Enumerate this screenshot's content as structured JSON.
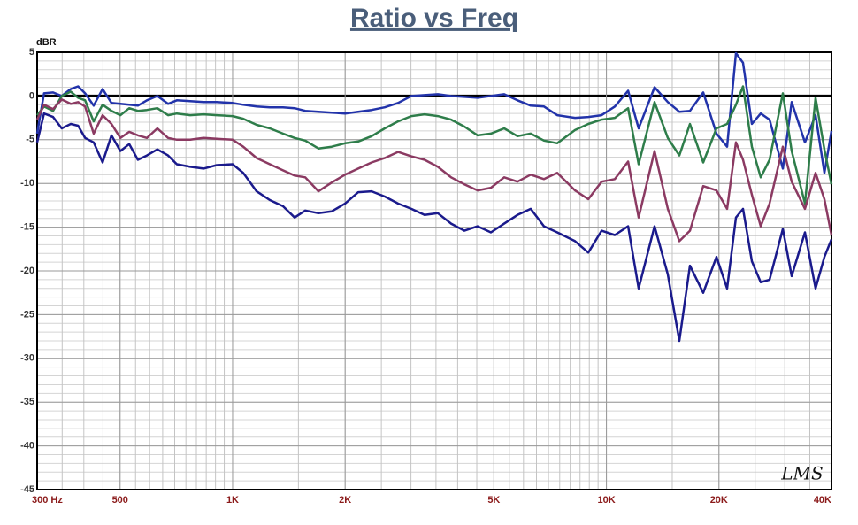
{
  "chart_data": {
    "type": "line",
    "title": "Ratio vs Freq",
    "y_label": "dBR",
    "signature": "LMS",
    "log_x": true,
    "grid": true,
    "xlim": [
      300,
      40000
    ],
    "xticks": [
      {
        "value": 300,
        "label": "300 Hz"
      },
      500,
      {
        "value": 1000,
        "label": "1K"
      },
      {
        "value": 2000,
        "label": "2K"
      },
      {
        "value": 5000,
        "label": "5K"
      },
      {
        "value": 10000,
        "label": "10K"
      },
      {
        "value": 20000,
        "label": "20K"
      },
      {
        "value": 40000,
        "label": "40K"
      }
    ],
    "ylim": [
      -45,
      5
    ],
    "yticks": [
      5,
      0,
      -5,
      -10,
      -15,
      -20,
      -25,
      -30,
      -35,
      -40,
      -45
    ],
    "x": [
      300,
      313,
      331,
      349,
      369,
      386,
      403,
      425,
      449,
      474,
      501,
      529,
      558,
      590,
      629,
      672,
      709,
      770,
      836,
      907,
      1000,
      1068,
      1159,
      1258,
      1364,
      1465,
      1564,
      1697,
      1841,
      1999,
      2168,
      2354,
      2553,
      2771,
      3006,
      3262,
      3540,
      3842,
      4169,
      4525,
      4910,
      5328,
      5782,
      6275,
      6809,
      7389,
      8241,
      8943,
      9704,
      10531,
      11428,
      12195,
      13455,
      14601,
      15672,
      16731,
      18156,
      19702,
      21026,
      22207,
      23195,
      24498,
      25870,
      27318,
      29644,
      31300,
      33960,
      36270,
      38290,
      40000
    ],
    "series": [
      {
        "color": "#2233aa",
        "values": [
          -4.3,
          0.3,
          0.4,
          0,
          0.8,
          1.1,
          0.3,
          -1.1,
          0.8,
          -0.8,
          -0.9,
          -1,
          -1.1,
          -0.5,
          0,
          -0.9,
          -0.5,
          -0.6,
          -0.7,
          -0.7,
          -0.8,
          -1,
          -1.2,
          -1.3,
          -1.3,
          -1.4,
          -1.7,
          -1.8,
          -1.9,
          -2,
          -1.8,
          -1.6,
          -1.3,
          -0.8,
          0,
          0.1,
          0.2,
          0,
          -0.1,
          -0.2,
          0,
          0.2,
          -0.5,
          -1.1,
          -1.2,
          -2.2,
          -2.5,
          -2.4,
          -2.2,
          -1.2,
          0.6,
          -3.7,
          1,
          -0.7,
          -1.8,
          -1.7,
          0.4,
          -4.3,
          -5.8,
          4.9,
          3.8,
          -3.2,
          -2,
          -2.7,
          -8.3,
          -0.7,
          -5.3,
          -2.2,
          -8.8,
          -4
        ]
      },
      {
        "color": "#2e7d4a",
        "values": [
          -2.2,
          -1.2,
          -1.7,
          0,
          0.5,
          -0.2,
          -0.5,
          -2.9,
          -1,
          -1.7,
          -2.2,
          -1.4,
          -1.7,
          -1.6,
          -1.4,
          -2.2,
          -2,
          -2.2,
          -2.1,
          -2.2,
          -2.3,
          -2.6,
          -3.3,
          -3.7,
          -4.3,
          -4.8,
          -5.1,
          -6,
          -5.8,
          -5.4,
          -5.2,
          -4.6,
          -3.7,
          -2.9,
          -2.3,
          -2.1,
          -2.3,
          -2.7,
          -3.5,
          -4.5,
          -4.3,
          -3.7,
          -4.6,
          -4.3,
          -5.1,
          -5.4,
          -3.9,
          -3.2,
          -2.7,
          -2.5,
          -1.4,
          -7.8,
          -0.7,
          -4.8,
          -6.8,
          -3.2,
          -7.6,
          -3.7,
          -3.2,
          -1,
          1.1,
          -5.8,
          -9.3,
          -7.3,
          0.3,
          -6.3,
          -12.3,
          -0.2,
          -6.1,
          -10.1
        ]
      },
      {
        "color": "#8b3a62",
        "values": [
          -2.7,
          -1,
          -1.5,
          -0.4,
          -0.9,
          -0.7,
          -1.2,
          -4.3,
          -2.2,
          -3.2,
          -4.8,
          -4.1,
          -4.5,
          -4.8,
          -3.7,
          -4.8,
          -5,
          -5,
          -4.8,
          -4.9,
          -5,
          -5.8,
          -7.1,
          -7.8,
          -8.5,
          -9.1,
          -9.3,
          -10.9,
          -9.9,
          -9,
          -8.3,
          -7.6,
          -7.1,
          -6.4,
          -6.9,
          -7.3,
          -8.1,
          -9.3,
          -10.1,
          -10.8,
          -10.5,
          -9.3,
          -9.8,
          -9,
          -9.5,
          -8.8,
          -10.8,
          -11.8,
          -9.8,
          -9.5,
          -7.5,
          -13.9,
          -6.3,
          -12.9,
          -16.6,
          -15.4,
          -10.3,
          -10.8,
          -12.9,
          -5.3,
          -7.3,
          -11.3,
          -14.9,
          -12.3,
          -5.8,
          -9.8,
          -12.9,
          -8.8,
          -11.8,
          -15.9
        ]
      },
      {
        "color": "#1a1a8c",
        "values": [
          -5.3,
          -2,
          -2.4,
          -3.7,
          -3.2,
          -3.4,
          -4.8,
          -5.3,
          -7.6,
          -4.5,
          -6.3,
          -5.5,
          -7.3,
          -6.8,
          -6.1,
          -6.8,
          -7.8,
          -8.1,
          -8.3,
          -7.9,
          -7.8,
          -8.8,
          -10.9,
          -11.9,
          -12.6,
          -13.9,
          -13.1,
          -13.4,
          -13.2,
          -12.3,
          -11,
          -10.9,
          -11.5,
          -12.3,
          -12.9,
          -13.6,
          -13.4,
          -14.6,
          -15.4,
          -14.9,
          -15.6,
          -14.6,
          -13.6,
          -12.9,
          -14.9,
          -15.6,
          -16.6,
          -17.9,
          -15.4,
          -15.9,
          -14.9,
          -22,
          -14.9,
          -20.4,
          -28,
          -19.4,
          -22.5,
          -18.4,
          -22,
          -13.9,
          -12.9,
          -18.9,
          -21.3,
          -21,
          -15.2,
          -20.6,
          -15.6,
          -22,
          -18.4,
          -16.4
        ]
      }
    ]
  }
}
